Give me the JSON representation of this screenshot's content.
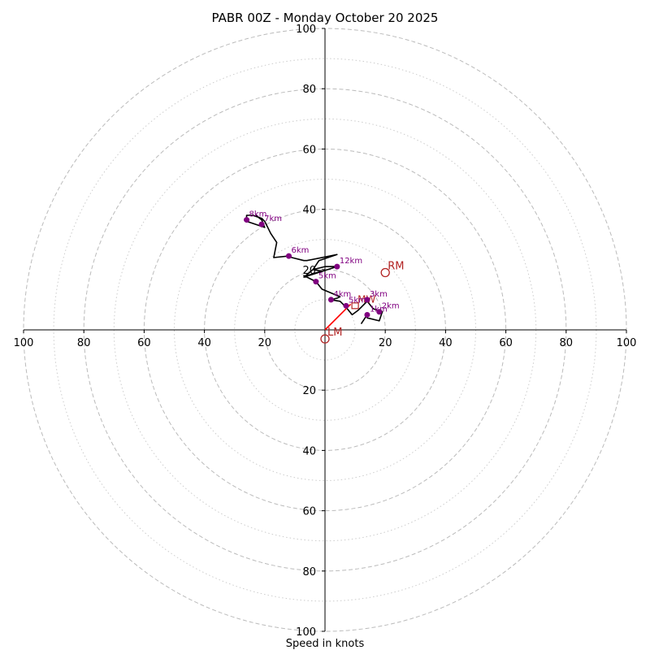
{
  "chart_data": {
    "type": "scatter",
    "subtype": "hodograph",
    "title": "PABR 00Z - Monday October 20 2025",
    "xlabel": "Speed in knots",
    "ylabel": "",
    "xlim": [
      -100,
      100
    ],
    "ylim": [
      -100,
      100
    ],
    "ring_major": [
      20,
      40,
      60,
      80,
      100
    ],
    "ring_minor": [
      10,
      30,
      50,
      70,
      90
    ],
    "x_ticks": [
      -100,
      -80,
      -60,
      -40,
      -20,
      20,
      40,
      60,
      80,
      100
    ],
    "x_tick_labels": [
      "100",
      "80",
      "60",
      "40",
      "20",
      "20",
      "40",
      "60",
      "80",
      "100"
    ],
    "y_ticks": [
      -100,
      -80,
      -60,
      -40,
      -20,
      20,
      40,
      60,
      80,
      100
    ],
    "y_tick_labels": [
      "100",
      "80",
      "60",
      "40",
      "20",
      "20",
      "40",
      "60",
      "80",
      "100"
    ],
    "grid": true,
    "colors": {
      "trace": "#000000",
      "height_marker": "#800080",
      "storm_motion": "#b22222",
      "shear_vector": "#ff0000",
      "grid": "#bbbbbb",
      "axes": "#000000"
    },
    "series": [
      {
        "role": "hodograph-trace",
        "points": [
          [
            12,
            2
          ],
          [
            14,
            5
          ],
          [
            14,
            4
          ],
          [
            18,
            3
          ],
          [
            19,
            6
          ],
          [
            16,
            7
          ],
          [
            14,
            9.5
          ],
          [
            13,
            8.5
          ],
          [
            11,
            6.5
          ],
          [
            9,
            5
          ],
          [
            7,
            7.5
          ],
          [
            5,
            9.5
          ],
          [
            2,
            10
          ],
          [
            4,
            10.5
          ],
          [
            5,
            11
          ],
          [
            -1,
            13.5
          ],
          [
            -3,
            16
          ],
          [
            -7,
            18
          ],
          [
            -6.5,
            17.5
          ],
          [
            -6,
            18
          ],
          [
            -1,
            19.5
          ],
          [
            -4,
            20
          ],
          [
            0,
            21
          ],
          [
            4,
            21
          ],
          [
            -7,
            17.5
          ],
          [
            -4,
            20
          ],
          [
            -2,
            23
          ],
          [
            4,
            25
          ],
          [
            -6,
            23
          ],
          [
            -7,
            23
          ],
          [
            -11,
            24
          ],
          [
            -12,
            24.5
          ],
          [
            -17,
            24
          ],
          [
            -16,
            29
          ],
          [
            -18,
            32
          ],
          [
            -20,
            36
          ],
          [
            -21,
            37
          ],
          [
            -24,
            38
          ],
          [
            -26,
            38
          ],
          [
            -26,
            36
          ],
          [
            -20,
            34
          ],
          [
            -21,
            36.5
          ],
          [
            -23,
            38
          ]
        ]
      },
      {
        "role": "height-markers",
        "points": [
          {
            "x": 14,
            "y": 5,
            "label": "1km"
          },
          {
            "x": 18,
            "y": 6,
            "label": "2km"
          },
          {
            "x": 14,
            "y": 10,
            "label": "3km"
          },
          {
            "x": 2,
            "y": 10,
            "label": "4km"
          },
          {
            "x": 7,
            "y": 8,
            "label": "5km"
          },
          {
            "x": -3,
            "y": 16,
            "label": "5km"
          },
          {
            "x": -12,
            "y": 24.5,
            "label": "6km"
          },
          {
            "x": -21,
            "y": 35,
            "label": "7km"
          },
          {
            "x": -26,
            "y": 36.5,
            "label": "8km"
          },
          {
            "x": 4,
            "y": 21,
            "label": "12km"
          }
        ]
      }
    ],
    "storm_motion": [
      {
        "label": "RM",
        "x": 20,
        "y": 19
      },
      {
        "label": "LM",
        "x": 0,
        "y": -3
      },
      {
        "label": "MW",
        "x": 10,
        "y": 8
      }
    ],
    "shear_vector": {
      "from": [
        0,
        0
      ],
      "to": [
        8.5,
        8.5
      ]
    }
  }
}
